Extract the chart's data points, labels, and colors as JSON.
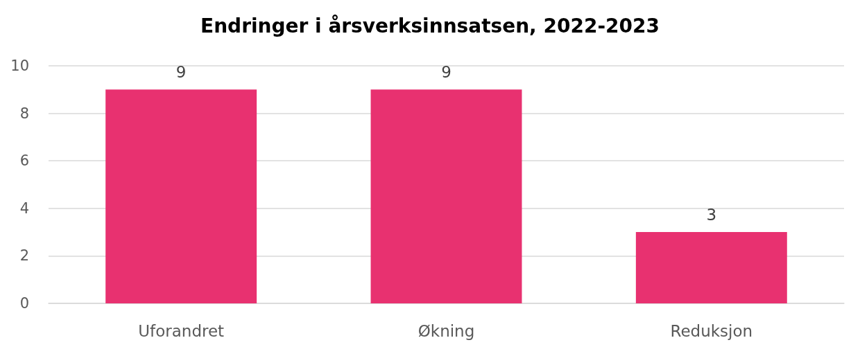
{
  "chart_data": {
    "type": "bar",
    "title": "Endringer i årsverksinnsatsen, 2022-2023",
    "categories": [
      "Uforandret",
      "Økning",
      "Reduksjon"
    ],
    "values": [
      9,
      9,
      3
    ],
    "color": "#e83170",
    "ylim": [
      0,
      10
    ],
    "yticks": [
      0,
      2,
      4,
      6,
      8,
      10
    ],
    "grid": "y",
    "data_labels": true
  }
}
